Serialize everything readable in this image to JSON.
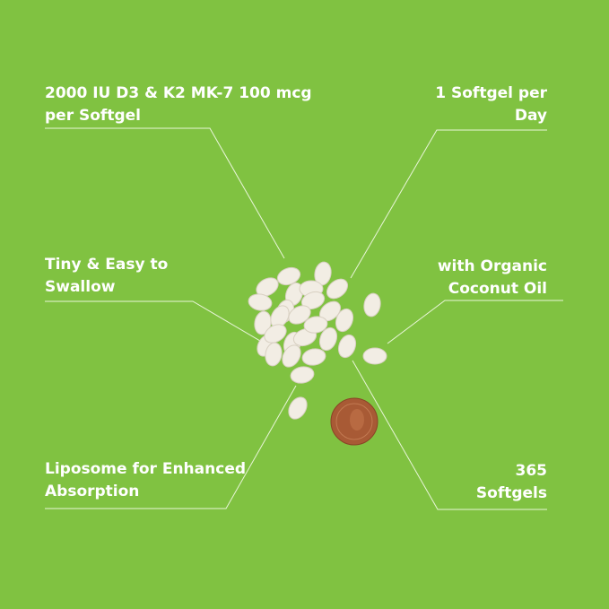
{
  "background_color": "#80c241",
  "features": {
    "dose": "2000 IU D3 & K2 MK-7 100 mcg\nper Softgel",
    "daily": "1 Softgel per\nDay",
    "size": "Tiny & Easy to\nSwallow",
    "oil": "with Organic\nCoconut Oil",
    "liposome": "Liposome for Enhanced\nAbsorption",
    "count": "365\nSoftgels"
  },
  "image": {
    "content": "softgels-with-penny"
  }
}
